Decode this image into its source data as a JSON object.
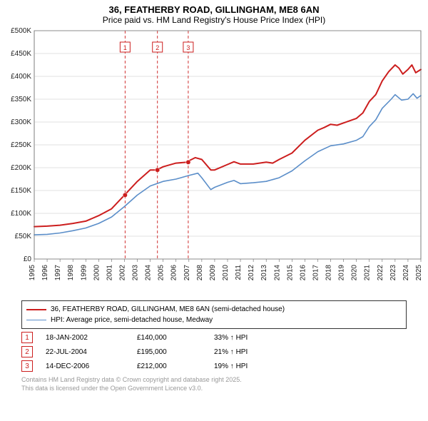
{
  "title_line1": "36, FEATHERBY ROAD, GILLINGHAM, ME8 6AN",
  "title_line2": "Price paid vs. HM Land Registry's House Price Index (HPI)",
  "chart": {
    "type": "line",
    "background_color": "#ffffff",
    "plot_background_color": "#ffffff",
    "grid_color": "#d9d9d9",
    "axis_color": "#666666",
    "font_family": "Arial",
    "title_fontsize": 13,
    "label_fontsize": 10,
    "x": {
      "min": 1995,
      "max": 2025,
      "ticks": [
        1995,
        1996,
        1997,
        1998,
        1999,
        2000,
        2001,
        2002,
        2003,
        2004,
        2005,
        2006,
        2007,
        2008,
        2009,
        2010,
        2011,
        2012,
        2013,
        2014,
        2015,
        2016,
        2017,
        2018,
        2019,
        2020,
        2021,
        2022,
        2023,
        2024,
        2025
      ]
    },
    "y": {
      "min": 0,
      "max": 500000,
      "tick_step": 50000,
      "tick_prefix": "£",
      "tick_suffix": "K",
      "tick_labels": [
        "£0",
        "£50K",
        "£100K",
        "£150K",
        "£200K",
        "£250K",
        "£300K",
        "£350K",
        "£400K",
        "£450K",
        "£500K"
      ]
    },
    "series": [
      {
        "name": "36, FEATHERBY ROAD, GILLINGHAM, ME8 6AN (semi-detached house)",
        "color": "#cc1e1e",
        "line_width": 2,
        "data": [
          [
            1995,
            71000
          ],
          [
            1996,
            72000
          ],
          [
            1997,
            74000
          ],
          [
            1998,
            78000
          ],
          [
            1999,
            83000
          ],
          [
            2000,
            95000
          ],
          [
            2001,
            110000
          ],
          [
            2002,
            140000
          ],
          [
            2003,
            170000
          ],
          [
            2004,
            195000
          ],
          [
            2004.5,
            195000
          ],
          [
            2005,
            202000
          ],
          [
            2006,
            210000
          ],
          [
            2006.9,
            212000
          ],
          [
            2007,
            215000
          ],
          [
            2007.5,
            222000
          ],
          [
            2008,
            218000
          ],
          [
            2008.7,
            195000
          ],
          [
            2009,
            195000
          ],
          [
            2010,
            207000
          ],
          [
            2010.5,
            213000
          ],
          [
            2011,
            208000
          ],
          [
            2012,
            208000
          ],
          [
            2013,
            212000
          ],
          [
            2013.5,
            210000
          ],
          [
            2014,
            218000
          ],
          [
            2015,
            232000
          ],
          [
            2016,
            260000
          ],
          [
            2017,
            282000
          ],
          [
            2017.5,
            288000
          ],
          [
            2018,
            295000
          ],
          [
            2018.5,
            293000
          ],
          [
            2019,
            298000
          ],
          [
            2020,
            308000
          ],
          [
            2020.5,
            320000
          ],
          [
            2021,
            345000
          ],
          [
            2021.5,
            360000
          ],
          [
            2022,
            390000
          ],
          [
            2022.5,
            410000
          ],
          [
            2023,
            425000
          ],
          [
            2023.3,
            418000
          ],
          [
            2023.6,
            405000
          ],
          [
            2024,
            415000
          ],
          [
            2024.3,
            425000
          ],
          [
            2024.6,
            408000
          ],
          [
            2025,
            415000
          ]
        ],
        "markers": [
          {
            "x": 2002.05,
            "y": 140000
          },
          {
            "x": 2004.56,
            "y": 195000
          },
          {
            "x": 2006.95,
            "y": 212000
          }
        ]
      },
      {
        "name": "HPI: Average price, semi-detached house, Medway",
        "color": "#5b8ec9",
        "line_width": 1.6,
        "data": [
          [
            1995,
            53000
          ],
          [
            1996,
            54000
          ],
          [
            1997,
            57000
          ],
          [
            1998,
            62000
          ],
          [
            1999,
            68000
          ],
          [
            2000,
            78000
          ],
          [
            2001,
            92000
          ],
          [
            2002,
            115000
          ],
          [
            2003,
            140000
          ],
          [
            2004,
            160000
          ],
          [
            2005,
            170000
          ],
          [
            2006,
            175000
          ],
          [
            2007,
            183000
          ],
          [
            2007.7,
            188000
          ],
          [
            2008,
            178000
          ],
          [
            2008.7,
            152000
          ],
          [
            2009,
            157000
          ],
          [
            2010,
            168000
          ],
          [
            2010.5,
            172000
          ],
          [
            2011,
            165000
          ],
          [
            2012,
            167000
          ],
          [
            2013,
            170000
          ],
          [
            2014,
            178000
          ],
          [
            2015,
            193000
          ],
          [
            2016,
            215000
          ],
          [
            2017,
            235000
          ],
          [
            2018,
            248000
          ],
          [
            2019,
            252000
          ],
          [
            2020,
            260000
          ],
          [
            2020.5,
            268000
          ],
          [
            2021,
            290000
          ],
          [
            2021.5,
            305000
          ],
          [
            2022,
            330000
          ],
          [
            2022.7,
            350000
          ],
          [
            2023,
            360000
          ],
          [
            2023.5,
            348000
          ],
          [
            2024,
            350000
          ],
          [
            2024.4,
            362000
          ],
          [
            2024.7,
            352000
          ],
          [
            2025,
            358000
          ]
        ]
      }
    ],
    "event_lines": {
      "color": "#cc1e1e",
      "dash": "4,3",
      "box_border": "#cc1e1e",
      "items": [
        {
          "n": "1",
          "x": 2002.05
        },
        {
          "n": "2",
          "x": 2004.56
        },
        {
          "n": "3",
          "x": 2006.95
        }
      ]
    }
  },
  "legend": {
    "series1": "36, FEATHERBY ROAD, GILLINGHAM, ME8 6AN (semi-detached house)",
    "series2": "HPI: Average price, semi-detached house, Medway"
  },
  "footnotes": [
    {
      "n": "1",
      "date": "18-JAN-2002",
      "price": "£140,000",
      "pct": "33% ↑ HPI"
    },
    {
      "n": "2",
      "date": "22-JUL-2004",
      "price": "£195,000",
      "pct": "21% ↑ HPI"
    },
    {
      "n": "3",
      "date": "14-DEC-2006",
      "price": "£212,000",
      "pct": "19% ↑ HPI"
    }
  ],
  "attribution_line1": "Contains HM Land Registry data © Crown copyright and database right 2025.",
  "attribution_line2": "This data is licensed under the Open Government Licence v3.0."
}
